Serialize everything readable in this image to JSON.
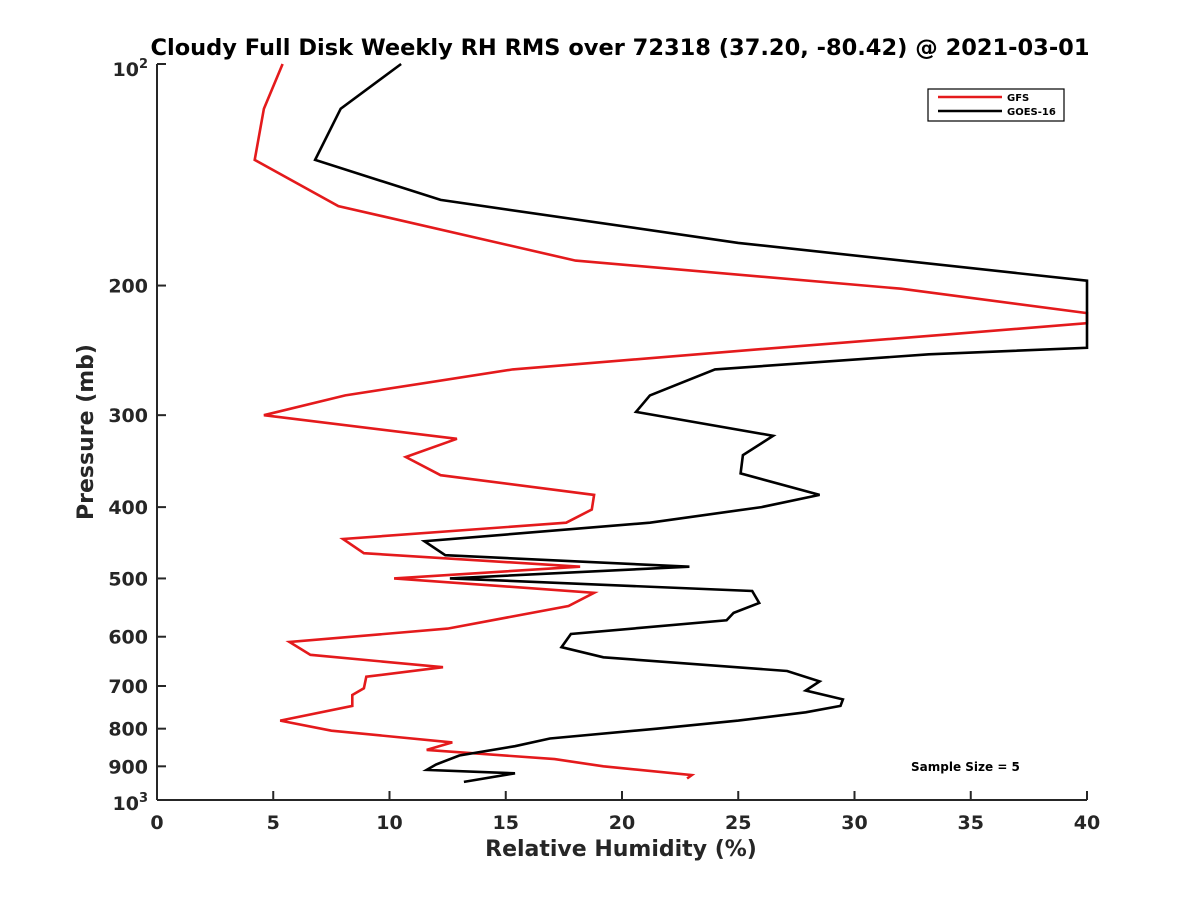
{
  "chart_data": {
    "type": "line",
    "title": "Cloudy Full Disk Weekly RH RMS over 72318 (37.20, -80.42) @ 2021-03-01",
    "xlabel": "Relative Humidity (%)",
    "ylabel": "Pressure (mb)",
    "xlim": [
      0,
      40
    ],
    "ylim": [
      100,
      1000
    ],
    "yscale": "log",
    "y_reversed": true,
    "grid": false,
    "legend_position": "top-right",
    "x_ticks": [
      0,
      5,
      10,
      15,
      20,
      25,
      30,
      35,
      40
    ],
    "x_tick_labels": [
      "0",
      "5",
      "10",
      "15",
      "20",
      "25",
      "30",
      "35",
      "40"
    ],
    "y_ticks": [
      200,
      300,
      400,
      500,
      600,
      700,
      800,
      900
    ],
    "y_tick_labels": [
      "200",
      "300",
      "400",
      "500",
      "600",
      "700",
      "800",
      "900"
    ],
    "y_decade_labels": [
      {
        "value": 100,
        "base": "10",
        "exp": "2"
      },
      {
        "value": 1000,
        "base": "10",
        "exp": "3"
      }
    ],
    "series": [
      {
        "name": "GFS",
        "color": "#e41a1c",
        "points": [
          [
            5.4,
            100
          ],
          [
            4.6,
            115
          ],
          [
            4.2,
            135
          ],
          [
            7.8,
            156
          ],
          [
            18.0,
            185
          ],
          [
            32.0,
            202
          ],
          [
            40.0,
            218
          ],
          [
            40.0,
            225
          ],
          [
            34.0,
            233
          ],
          [
            26.0,
            244
          ],
          [
            15.3,
            260
          ],
          [
            8.1,
            282
          ],
          [
            4.6,
            300
          ],
          [
            12.9,
            323
          ],
          [
            10.7,
            342
          ],
          [
            12.2,
            362
          ],
          [
            18.8,
            385
          ],
          [
            18.7,
            403
          ],
          [
            17.6,
            420
          ],
          [
            8.0,
            442
          ],
          [
            8.9,
            462
          ],
          [
            18.2,
            482
          ],
          [
            10.2,
            500
          ],
          [
            18.8,
            523
          ],
          [
            17.7,
            545
          ],
          [
            12.5,
            585
          ],
          [
            5.7,
            610
          ],
          [
            6.6,
            635
          ],
          [
            12.3,
            660
          ],
          [
            9.0,
            680
          ],
          [
            8.9,
            705
          ],
          [
            8.4,
            720
          ],
          [
            8.4,
            745
          ],
          [
            5.3,
            780
          ],
          [
            7.5,
            805
          ],
          [
            12.7,
            835
          ],
          [
            11.6,
            855
          ],
          [
            17.1,
            880
          ],
          [
            19.2,
            900
          ],
          [
            23.0,
            925
          ],
          [
            22.8,
            935
          ]
        ]
      },
      {
        "name": "GOES-16",
        "color": "#000000",
        "points": [
          [
            10.5,
            100
          ],
          [
            7.9,
            115
          ],
          [
            6.8,
            135
          ],
          [
            12.2,
            153
          ],
          [
            25.0,
            175
          ],
          [
            40.0,
            197
          ],
          [
            40.0,
            243
          ],
          [
            33.2,
            248
          ],
          [
            24.0,
            260
          ],
          [
            21.2,
            282
          ],
          [
            20.6,
            297
          ],
          [
            26.5,
            320
          ],
          [
            25.2,
            340
          ],
          [
            25.1,
            360
          ],
          [
            28.5,
            385
          ],
          [
            26.0,
            400
          ],
          [
            21.2,
            420
          ],
          [
            11.5,
            445
          ],
          [
            12.4,
            465
          ],
          [
            22.9,
            482
          ],
          [
            12.6,
            500
          ],
          [
            25.6,
            520
          ],
          [
            25.9,
            540
          ],
          [
            24.8,
            557
          ],
          [
            24.5,
            570
          ],
          [
            17.8,
            595
          ],
          [
            17.4,
            620
          ],
          [
            19.2,
            640
          ],
          [
            27.1,
            668
          ],
          [
            28.5,
            690
          ],
          [
            27.9,
            710
          ],
          [
            29.5,
            730
          ],
          [
            29.4,
            745
          ],
          [
            27.9,
            760
          ],
          [
            25.0,
            780
          ],
          [
            21.5,
            800
          ],
          [
            16.9,
            825
          ],
          [
            15.4,
            845
          ],
          [
            13.0,
            870
          ],
          [
            12.0,
            895
          ],
          [
            11.6,
            910
          ],
          [
            15.4,
            920
          ],
          [
            13.2,
            945
          ]
        ]
      }
    ],
    "annotations": [
      "Sample Size = 5"
    ]
  }
}
